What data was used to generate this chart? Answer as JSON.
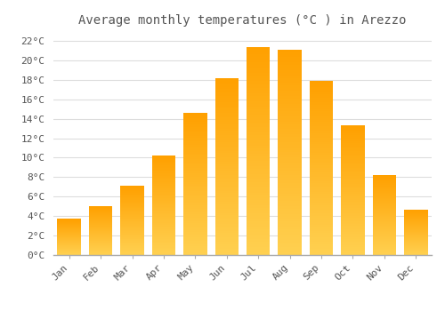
{
  "months": [
    "Jan",
    "Feb",
    "Mar",
    "Apr",
    "May",
    "Jun",
    "Jul",
    "Aug",
    "Sep",
    "Oct",
    "Nov",
    "Dec"
  ],
  "values": [
    3.7,
    5.0,
    7.1,
    10.2,
    14.6,
    18.2,
    21.4,
    21.1,
    17.9,
    13.3,
    8.2,
    4.7
  ],
  "title": "Average monthly temperatures (°C ) in Arezzo",
  "bar_color_bottom": "#FFD050",
  "bar_color_top": "#FFA000",
  "background_color": "#FFFFFF",
  "plot_bg_color": "#FFFFFF",
  "grid_color": "#DDDDDD",
  "text_color": "#555555",
  "ylim": [
    0,
    23
  ],
  "yticks": [
    0,
    2,
    4,
    6,
    8,
    10,
    12,
    14,
    16,
    18,
    20,
    22
  ],
  "ytick_labels": [
    "0°C",
    "2°C",
    "4°C",
    "6°C",
    "8°C",
    "10°C",
    "12°C",
    "14°C",
    "16°C",
    "18°C",
    "20°C",
    "22°C"
  ],
  "title_fontsize": 10,
  "tick_fontsize": 8,
  "font_family": "monospace",
  "bar_width": 0.75
}
